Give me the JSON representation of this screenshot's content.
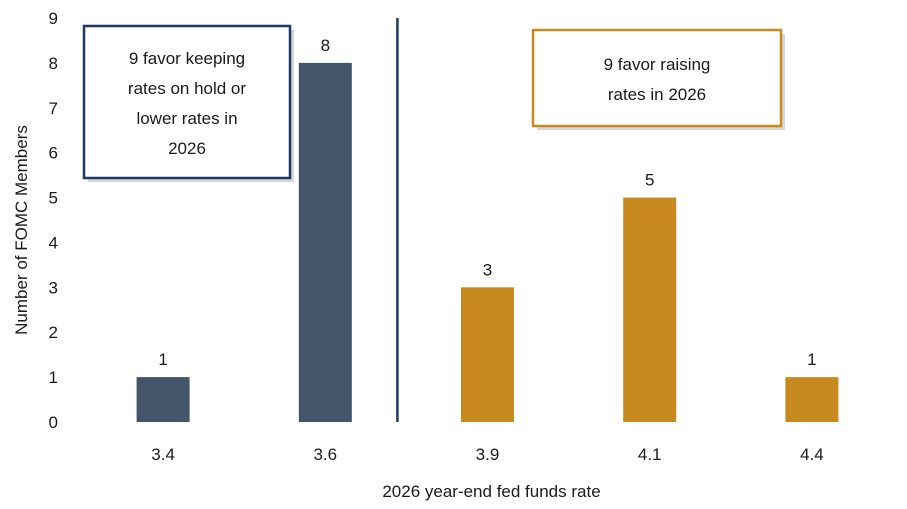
{
  "chart_data": {
    "type": "bar",
    "title": "",
    "xlabel": "2026 year-end fed funds rate",
    "ylabel": "Number of FOMC Members",
    "ylim": [
      0,
      9
    ],
    "yticks": [
      "0",
      "1",
      "2",
      "3",
      "4",
      "5",
      "6",
      "7",
      "8",
      "9"
    ],
    "grid": false,
    "categories": [
      "3.4",
      "3.6",
      "3.9",
      "4.1",
      "4.4"
    ],
    "values": [
      1,
      8,
      3,
      5,
      1
    ],
    "data_labels": [
      "1",
      "8",
      "3",
      "5",
      "1"
    ],
    "bar_colors": [
      "#44546a",
      "#44546a",
      "#c8891e",
      "#c8891e",
      "#c8891e"
    ],
    "divider_after_category": "3.6",
    "divider_color": "#1f3864",
    "annotations": [
      {
        "lines": [
          "9 favor keeping",
          "rates on hold or",
          "lower rates in",
          "2026"
        ],
        "border_color": "#1f3864",
        "side": "left"
      },
      {
        "lines": [
          "9 favor raising",
          "rates in 2026"
        ],
        "border_color": "#c8891e",
        "side": "right"
      }
    ]
  }
}
